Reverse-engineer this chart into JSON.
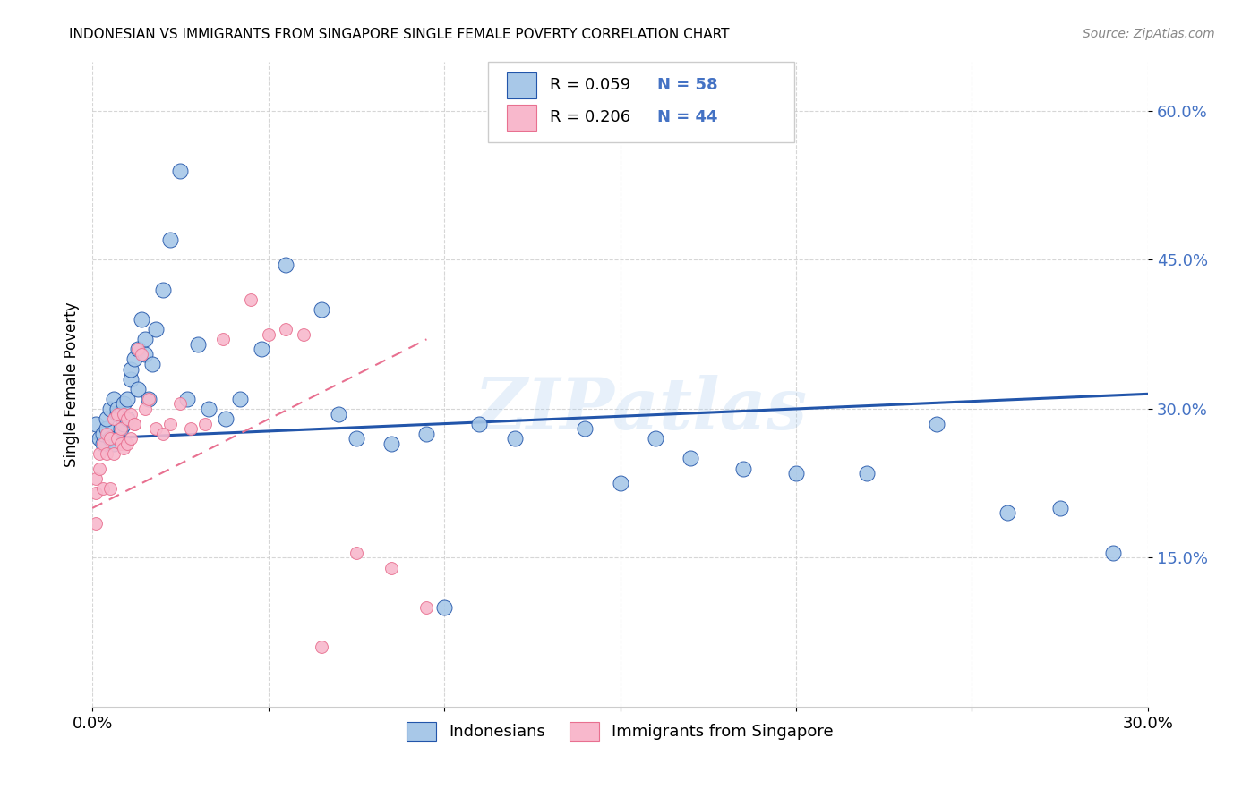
{
  "title": "INDONESIAN VS IMMIGRANTS FROM SINGAPORE SINGLE FEMALE POVERTY CORRELATION CHART",
  "source": "Source: ZipAtlas.com",
  "ylabel": "Single Female Poverty",
  "xlim": [
    0.0,
    0.3
  ],
  "ylim": [
    0.0,
    0.65
  ],
  "yticks": [
    0.15,
    0.3,
    0.45,
    0.6
  ],
  "ytick_labels": [
    "15.0%",
    "30.0%",
    "45.0%",
    "60.0%"
  ],
  "xticks": [
    0.0,
    0.05,
    0.1,
    0.15,
    0.2,
    0.25,
    0.3
  ],
  "xtick_labels": [
    "0.0%",
    "",
    "",
    "",
    "",
    "",
    "30.0%"
  ],
  "legend_labels": [
    "Indonesians",
    "Immigrants from Singapore"
  ],
  "r_indonesian": 0.059,
  "n_indonesian": 58,
  "r_singapore": 0.206,
  "n_singapore": 44,
  "blue_color": "#a8c8e8",
  "pink_color": "#f8b8cc",
  "trend_blue": "#2255aa",
  "trend_pink": "#e87090",
  "watermark": "ZIPatlas",
  "indonesian_x": [
    0.001,
    0.002,
    0.003,
    0.003,
    0.004,
    0.004,
    0.005,
    0.005,
    0.006,
    0.006,
    0.007,
    0.007,
    0.008,
    0.008,
    0.009,
    0.009,
    0.01,
    0.01,
    0.011,
    0.011,
    0.012,
    0.013,
    0.013,
    0.014,
    0.015,
    0.015,
    0.016,
    0.017,
    0.018,
    0.02,
    0.022,
    0.025,
    0.027,
    0.03,
    0.033,
    0.038,
    0.042,
    0.048,
    0.055,
    0.065,
    0.07,
    0.075,
    0.085,
    0.095,
    0.1,
    0.11,
    0.12,
    0.14,
    0.15,
    0.16,
    0.17,
    0.185,
    0.2,
    0.22,
    0.24,
    0.26,
    0.275,
    0.29
  ],
  "indonesian_y": [
    0.285,
    0.27,
    0.265,
    0.275,
    0.28,
    0.29,
    0.27,
    0.3,
    0.265,
    0.31,
    0.295,
    0.3,
    0.28,
    0.295,
    0.305,
    0.285,
    0.29,
    0.31,
    0.33,
    0.34,
    0.35,
    0.36,
    0.32,
    0.39,
    0.355,
    0.37,
    0.31,
    0.345,
    0.38,
    0.42,
    0.47,
    0.54,
    0.31,
    0.365,
    0.3,
    0.29,
    0.31,
    0.36,
    0.445,
    0.4,
    0.295,
    0.27,
    0.265,
    0.275,
    0.1,
    0.285,
    0.27,
    0.28,
    0.225,
    0.27,
    0.25,
    0.24,
    0.235,
    0.235,
    0.285,
    0.195,
    0.2,
    0.155
  ],
  "singapore_x": [
    0.001,
    0.001,
    0.001,
    0.002,
    0.002,
    0.003,
    0.003,
    0.004,
    0.004,
    0.005,
    0.005,
    0.006,
    0.006,
    0.007,
    0.007,
    0.008,
    0.008,
    0.009,
    0.009,
    0.01,
    0.01,
    0.011,
    0.011,
    0.012,
    0.012,
    0.013,
    0.014,
    0.015,
    0.016,
    0.018,
    0.02,
    0.022,
    0.025,
    0.028,
    0.032,
    0.037,
    0.045,
    0.05,
    0.055,
    0.06,
    0.065,
    0.075,
    0.085,
    0.095
  ],
  "singapore_y": [
    0.23,
    0.215,
    0.185,
    0.24,
    0.255,
    0.22,
    0.265,
    0.275,
    0.255,
    0.22,
    0.27,
    0.255,
    0.29,
    0.295,
    0.27,
    0.265,
    0.28,
    0.26,
    0.295,
    0.265,
    0.29,
    0.295,
    0.27,
    0.285,
    0.285,
    0.36,
    0.355,
    0.3,
    0.31,
    0.28,
    0.275,
    0.285,
    0.305,
    0.28,
    0.285,
    0.37,
    0.41,
    0.375,
    0.38,
    0.375,
    0.06,
    0.155,
    0.14,
    0.1
  ],
  "blue_trend_x": [
    0.0,
    0.3
  ],
  "blue_trend_y": [
    0.27,
    0.315
  ],
  "pink_trend_x": [
    0.0,
    0.095
  ],
  "pink_trend_y": [
    0.2,
    0.37
  ]
}
